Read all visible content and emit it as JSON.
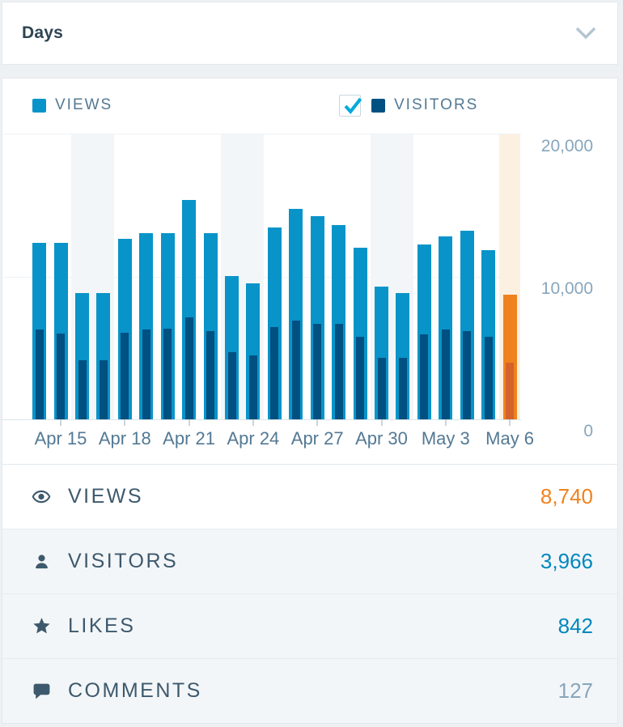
{
  "header": {
    "title": "Days"
  },
  "legend": {
    "views": {
      "label": "VIEWS",
      "color": "#0894c9"
    },
    "visitors": {
      "label": "VISITORS",
      "color": "#005082",
      "checkbox_checked": true
    }
  },
  "chart_data": {
    "type": "bar",
    "ylim": [
      0,
      20000
    ],
    "grid": "horizontal",
    "y_ticks": [
      {
        "value": 20000,
        "label": "20,000"
      },
      {
        "value": 10000,
        "label": "10,000"
      },
      {
        "value": 0,
        "label": "0"
      }
    ],
    "x_tick_labels": [
      "Apr 15",
      "Apr 18",
      "Apr 21",
      "Apr 24",
      "Apr 27",
      "Apr 30",
      "May 3",
      "May 6"
    ],
    "series_names": [
      "Views",
      "Visitors"
    ],
    "colors": {
      "views": "#0894c9",
      "visitors": "#005082",
      "views_selected": "#f0821e",
      "visitors_selected": "#d5622a",
      "weekend_bg": "#f3f6f8",
      "selected_bg": "#fcf0e1"
    },
    "days": [
      {
        "date": "Apr 14",
        "tick_label": null,
        "views": 12400,
        "visitors": 6290,
        "weekend": false,
        "selected": false
      },
      {
        "date": "Apr 15",
        "tick_label": "Apr 15",
        "views": 12400,
        "visitors": 6010,
        "weekend": false,
        "selected": false
      },
      {
        "date": "Apr 16",
        "tick_label": null,
        "views": 8890,
        "visitors": 4160,
        "weekend": true,
        "selected": false
      },
      {
        "date": "Apr 17",
        "tick_label": null,
        "views": 8890,
        "visitors": 4160,
        "weekend": true,
        "selected": false
      },
      {
        "date": "Apr 18",
        "tick_label": "Apr 18",
        "views": 12650,
        "visitors": 6060,
        "weekend": false,
        "selected": false
      },
      {
        "date": "Apr 19",
        "tick_label": null,
        "views": 13070,
        "visitors": 6290,
        "weekend": false,
        "selected": false
      },
      {
        "date": "Apr 20",
        "tick_label": null,
        "views": 13070,
        "visitors": 6340,
        "weekend": false,
        "selected": false
      },
      {
        "date": "Apr 21",
        "tick_label": "Apr 21",
        "views": 15420,
        "visitors": 7140,
        "weekend": false,
        "selected": false
      },
      {
        "date": "Apr 22",
        "tick_label": null,
        "views": 13070,
        "visitors": 6200,
        "weekend": false,
        "selected": false
      },
      {
        "date": "Apr 23",
        "tick_label": null,
        "views": 10060,
        "visitors": 4730,
        "weekend": true,
        "selected": false
      },
      {
        "date": "Apr 24",
        "tick_label": "Apr 24",
        "views": 9530,
        "visitors": 4500,
        "weekend": true,
        "selected": false
      },
      {
        "date": "Apr 25",
        "tick_label": null,
        "views": 13450,
        "visitors": 6480,
        "weekend": false,
        "selected": false
      },
      {
        "date": "Apr 26",
        "tick_label": null,
        "views": 14800,
        "visitors": 6910,
        "weekend": false,
        "selected": false
      },
      {
        "date": "Apr 27",
        "tick_label": "Apr 27",
        "views": 14240,
        "visitors": 6710,
        "weekend": false,
        "selected": false
      },
      {
        "date": "Apr 28",
        "tick_label": null,
        "views": 13630,
        "visitors": 6710,
        "weekend": false,
        "selected": false
      },
      {
        "date": "Apr 29",
        "tick_label": null,
        "views": 12070,
        "visitors": 5820,
        "weekend": false,
        "selected": false
      },
      {
        "date": "Apr 30",
        "tick_label": "Apr 30",
        "views": 9300,
        "visitors": 4310,
        "weekend": true,
        "selected": false
      },
      {
        "date": "May 1",
        "tick_label": null,
        "views": 8890,
        "visitors": 4310,
        "weekend": true,
        "selected": false
      },
      {
        "date": "May 2",
        "tick_label": null,
        "views": 12280,
        "visitors": 5950,
        "weekend": false,
        "selected": false
      },
      {
        "date": "May 3",
        "tick_label": "May 3",
        "views": 12840,
        "visitors": 6290,
        "weekend": false,
        "selected": false
      },
      {
        "date": "May 4",
        "tick_label": null,
        "views": 13260,
        "visitors": 6200,
        "weekend": false,
        "selected": false
      },
      {
        "date": "May 5",
        "tick_label": null,
        "views": 11880,
        "visitors": 5820,
        "weekend": false,
        "selected": false
      },
      {
        "date": "May 6",
        "tick_label": "May 6",
        "views": 8740,
        "visitors": 3966,
        "weekend": false,
        "selected": true
      }
    ]
  },
  "summary": {
    "rows": [
      {
        "id": "views",
        "icon": "eye-icon",
        "label": "VIEWS",
        "value": "8,740",
        "value_color": "#f0821e"
      },
      {
        "id": "visitors",
        "icon": "user-icon",
        "label": "VISITORS",
        "value": "3,966",
        "value_color": "#0087be"
      },
      {
        "id": "likes",
        "icon": "star-icon",
        "label": "LIKES",
        "value": "842",
        "value_color": "#0087be"
      },
      {
        "id": "comments",
        "icon": "comment-icon",
        "label": "COMMENTS",
        "value": "127",
        "value_color": "#87a6bc"
      }
    ]
  }
}
